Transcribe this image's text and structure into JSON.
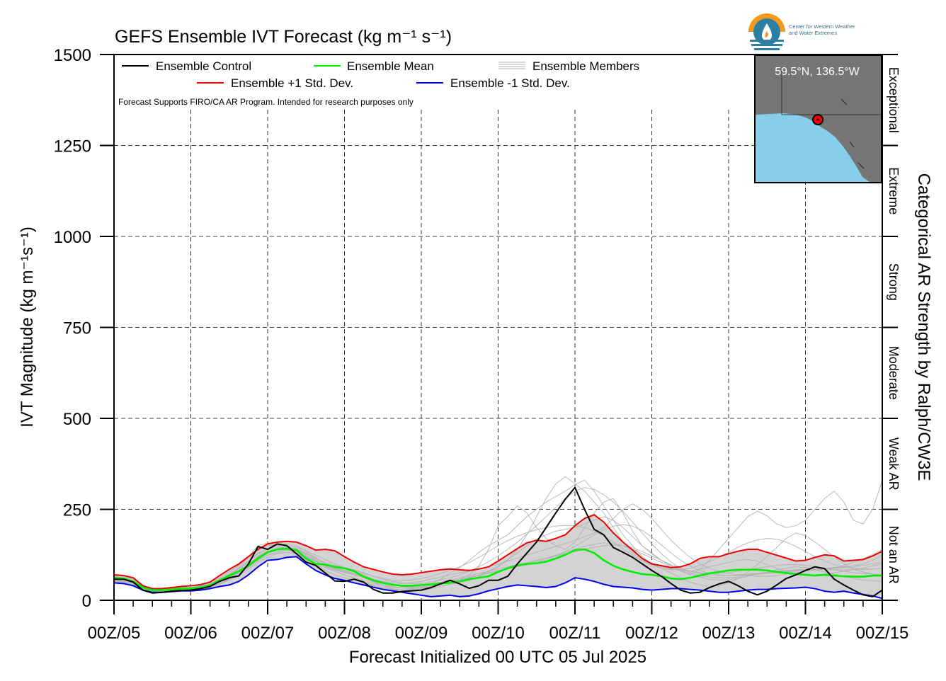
{
  "chart_data": {
    "type": "line",
    "title": "GEFS Ensemble IVT Forecast (kg m⁻¹ s⁻¹)",
    "xlabel": "Forecast Initialized 00 UTC 05 Jul 2025",
    "ylabel": "IVT Magnitude (kg m⁻¹s⁻¹)",
    "right_label": "Categorical AR Strength by Ralph/CW3E",
    "ylim": [
      0,
      1500
    ],
    "xlim": [
      0,
      10
    ],
    "grid": true,
    "legend_position": "top-left",
    "y_ticks": [
      "0",
      "250",
      "500",
      "750",
      "1000",
      "1250",
      "1500"
    ],
    "x_ticks": [
      "00Z/05",
      "00Z/06",
      "00Z/07",
      "00Z/08",
      "00Z/09",
      "00Z/10",
      "00Z/11",
      "00Z/12",
      "00Z/13",
      "00Z/14",
      "00Z/15"
    ],
    "note": "Forecast Supports FIRO/CA AR Program. Intended for research purposes only",
    "categories": [
      {
        "label": "Not an AR",
        "range": [
          0,
          250
        ]
      },
      {
        "label": "Weak AR",
        "range": [
          250,
          500
        ]
      },
      {
        "label": "Moderate",
        "range": [
          500,
          750
        ]
      },
      {
        "label": "Strong",
        "range": [
          750,
          1000
        ]
      },
      {
        "label": "Extreme",
        "range": [
          1000,
          1250
        ]
      },
      {
        "label": "Exceptional",
        "range": [
          1250,
          1500
        ]
      }
    ],
    "legend": {
      "control": "Ensemble Control",
      "mean": "Ensemble Mean",
      "members": "Ensemble Members",
      "plus_std": "Ensemble +1 Std. Dev.",
      "minus_std": "Ensemble -1 Std. Dev."
    },
    "colors": {
      "control": "#000000",
      "mean": "#00ee00",
      "plus_std": "#ee0000",
      "minus_std": "#0000ee",
      "members": "#b3b3b3",
      "spread": "#d3d3d3",
      "map_land": "#757575",
      "map_ocean": "#87ceeb",
      "logo_orange": "#f39a1f",
      "logo_blue": "#2d7fa4"
    },
    "x": [
      0,
      0.125,
      0.25,
      0.375,
      0.5,
      0.625,
      0.75,
      0.875,
      1,
      1.125,
      1.25,
      1.375,
      1.5,
      1.625,
      1.75,
      1.875,
      2,
      2.125,
      2.25,
      2.375,
      2.5,
      2.625,
      2.75,
      2.875,
      3,
      3.125,
      3.25,
      3.375,
      3.5,
      3.625,
      3.75,
      3.875,
      4,
      4.125,
      4.25,
      4.375,
      4.5,
      4.625,
      4.75,
      4.875,
      5,
      5.125,
      5.25,
      5.375,
      5.5,
      5.625,
      5.75,
      5.875,
      6,
      6.125,
      6.25,
      6.375,
      6.5,
      6.625,
      6.75,
      6.875,
      7,
      7.125,
      7.25,
      7.375,
      7.5,
      7.625,
      7.75,
      7.875,
      8,
      8.125,
      8.25,
      8.375,
      8.5,
      8.625,
      8.75,
      8.875,
      9,
      9.125,
      9.25,
      9.375,
      9.5,
      9.625,
      9.75,
      9.875,
      10
    ],
    "series": [
      {
        "name": "Ensemble Control",
        "key": "control",
        "values": [
          58,
          58,
          50,
          28,
          20,
          22,
          25,
          27,
          28,
          32,
          38,
          52,
          62,
          67,
          100,
          148,
          140,
          155,
          150,
          128,
          105,
          96,
          75,
          53,
          52,
          58,
          50,
          30,
          20,
          20,
          24,
          26,
          28,
          35,
          45,
          55,
          45,
          33,
          40,
          55,
          55,
          66,
          100,
          130,
          160,
          200,
          240,
          278,
          310,
          250,
          195,
          180,
          145,
          132,
          118,
          100,
          82,
          66,
          46,
          28,
          20,
          22,
          35,
          45,
          52,
          40,
          25,
          15,
          25,
          42,
          60,
          70,
          82,
          92,
          87,
          58,
          42,
          28,
          15,
          10,
          28
        ],
        "draw": true
      },
      {
        "name": "Ensemble Mean",
        "key": "mean",
        "values": [
          62,
          60,
          52,
          35,
          28,
          28,
          30,
          32,
          33,
          36,
          42,
          55,
          68,
          80,
          95,
          115,
          132,
          140,
          142,
          138,
          115,
          100,
          98,
          92,
          88,
          80,
          65,
          55,
          48,
          43,
          40,
          40,
          42,
          44,
          46,
          48,
          52,
          58,
          62,
          66,
          78,
          88,
          96,
          100,
          102,
          106,
          115,
          125,
          138,
          140,
          130,
          110,
          95,
          85,
          78,
          72,
          70,
          66,
          60,
          58,
          62,
          68,
          74,
          78,
          82,
          84,
          84,
          84,
          82,
          78,
          75,
          72,
          70,
          68,
          70,
          68,
          66,
          65,
          65,
          68,
          68
        ],
        "draw": true
      },
      {
        "name": "Ensemble +1 Std. Dev.",
        "key": "plus_std",
        "values": [
          70,
          68,
          62,
          40,
          32,
          32,
          35,
          38,
          40,
          43,
          50,
          68,
          85,
          100,
          120,
          140,
          155,
          160,
          162,
          160,
          150,
          138,
          140,
          136,
          120,
          105,
          92,
          85,
          78,
          72,
          70,
          72,
          76,
          80,
          84,
          86,
          84,
          82,
          86,
          92,
          108,
          125,
          142,
          158,
          165,
          162,
          170,
          180,
          205,
          225,
          235,
          215,
          185,
          160,
          138,
          115,
          100,
          95,
          90,
          92,
          100,
          115,
          120,
          120,
          128,
          135,
          140,
          140,
          132,
          124,
          116,
          108,
          110,
          118,
          125,
          122,
          108,
          110,
          112,
          122,
          135
        ],
        "draw": true
      },
      {
        "name": "Ensemble -1 Std. Dev.",
        "key": "minus_std",
        "values": [
          48,
          46,
          40,
          28,
          22,
          22,
          24,
          26,
          26,
          28,
          32,
          38,
          42,
          52,
          70,
          92,
          110,
          112,
          118,
          120,
          100,
          82,
          70,
          60,
          55,
          48,
          42,
          36,
          30,
          26,
          22,
          18,
          14,
          10,
          12,
          14,
          10,
          12,
          18,
          26,
          32,
          38,
          42,
          40,
          38,
          35,
          38,
          48,
          62,
          58,
          52,
          44,
          38,
          36,
          34,
          30,
          28,
          30,
          32,
          32,
          30,
          28,
          25,
          22,
          22,
          25,
          28,
          30,
          30,
          32,
          33,
          34,
          36,
          32,
          25,
          22,
          25,
          20,
          16,
          12,
          5
        ],
        "draw": true
      }
    ],
    "members": [
      [
        62,
        58,
        48,
        30,
        25,
        26,
        28,
        30,
        32,
        35,
        40,
        58,
        72,
        90,
        120,
        150,
        158,
        150,
        140,
        130,
        112,
        95,
        90,
        80,
        70,
        62,
        50,
        42,
        35,
        30,
        28,
        30,
        35,
        40,
        46,
        52,
        58,
        70,
        95,
        140,
        205,
        230,
        260,
        240,
        200,
        170,
        150,
        140,
        160,
        200,
        240,
        270,
        280,
        240,
        190,
        150,
        130,
        110,
        95,
        80,
        70,
        85,
        110,
        140,
        170,
        200,
        230,
        245,
        232,
        210,
        200,
        205,
        220,
        250,
        280,
        300,
        270,
        220,
        210,
        250,
        330
      ],
      [
        55,
        52,
        45,
        28,
        20,
        22,
        24,
        26,
        26,
        30,
        36,
        46,
        60,
        75,
        98,
        122,
        135,
        140,
        138,
        132,
        120,
        108,
        98,
        88,
        80,
        72,
        62,
        50,
        40,
        32,
        28,
        26,
        28,
        32,
        38,
        44,
        48,
        55,
        65,
        78,
        92,
        110,
        140,
        180,
        230,
        280,
        320,
        340,
        320,
        300,
        270,
        240,
        200,
        160,
        130,
        110,
        100,
        92,
        86,
        82,
        80,
        85,
        92,
        98,
        104,
        110,
        112,
        108,
        98,
        88,
        80,
        74,
        72,
        70,
        72,
        76,
        80,
        84,
        88,
        95,
        100
      ],
      [
        60,
        58,
        50,
        32,
        26,
        26,
        30,
        32,
        34,
        38,
        44,
        58,
        70,
        85,
        105,
        128,
        140,
        150,
        155,
        150,
        135,
        118,
        100,
        92,
        86,
        80,
        70,
        58,
        48,
        42,
        38,
        36,
        38,
        45,
        58,
        75,
        90,
        110,
        132,
        150,
        165,
        180,
        205,
        230,
        250,
        270,
        285,
        300,
        318,
        330,
        300,
        260,
        220,
        180,
        150,
        120,
        100,
        88,
        75,
        62,
        50,
        42,
        38,
        40,
        48,
        60,
        78,
        98,
        120,
        145,
        170,
        185,
        178,
        160,
        140,
        120,
        100,
        85,
        78,
        72,
        70
      ],
      [
        50,
        48,
        42,
        26,
        20,
        20,
        22,
        24,
        24,
        28,
        34,
        44,
        56,
        68,
        85,
        105,
        118,
        128,
        132,
        130,
        118,
        100,
        82,
        70,
        62,
        56,
        48,
        40,
        32,
        28,
        26,
        28,
        32,
        38,
        44,
        50,
        56,
        62,
        70,
        80,
        95,
        112,
        130,
        150,
        168,
        180,
        190,
        195,
        200,
        210,
        220,
        230,
        220,
        200,
        175,
        150,
        128,
        110,
        95,
        82,
        72,
        64,
        58,
        56,
        56,
        60,
        66,
        72,
        78,
        84,
        88,
        92,
        90,
        84,
        78,
        72,
        66,
        60,
        56,
        54,
        52
      ],
      [
        58,
        56,
        50,
        30,
        22,
        24,
        26,
        28,
        30,
        34,
        40,
        52,
        64,
        78,
        95,
        118,
        130,
        138,
        140,
        138,
        125,
        110,
        96,
        86,
        78,
        70,
        64,
        58,
        52,
        48,
        46,
        48,
        52,
        58,
        64,
        70,
        76,
        80,
        86,
        92,
        100,
        108,
        116,
        124,
        132,
        140,
        148,
        156,
        165,
        175,
        185,
        200,
        225,
        250,
        265,
        250,
        225,
        195,
        165,
        140,
        118,
        100,
        88,
        80,
        74,
        70,
        68,
        66,
        66,
        68,
        72,
        76,
        80,
        84,
        86,
        88,
        90,
        92,
        96,
        100,
        104
      ],
      [
        65,
        62,
        54,
        36,
        28,
        28,
        30,
        32,
        34,
        38,
        44,
        58,
        72,
        88,
        108,
        130,
        140,
        145,
        146,
        142,
        130,
        116,
        104,
        96,
        90,
        84,
        76,
        66,
        58,
        52,
        48,
        46,
        46,
        50,
        56,
        62,
        70,
        80,
        92,
        106,
        122,
        140,
        160,
        182,
        205,
        230,
        255,
        280,
        300,
        310,
        305,
        290,
        270,
        245,
        215,
        185,
        155,
        128,
        105,
        88,
        76,
        68,
        64,
        62,
        62,
        64,
        68,
        72,
        76,
        80,
        82,
        84,
        85,
        86,
        88,
        90,
        92,
        95,
        100,
        110,
        125
      ],
      [
        52,
        50,
        44,
        28,
        22,
        22,
        24,
        26,
        26,
        30,
        36,
        46,
        58,
        72,
        90,
        110,
        124,
        134,
        138,
        136,
        124,
        108,
        92,
        80,
        70,
        62,
        54,
        46,
        40,
        36,
        34,
        34,
        36,
        40,
        46,
        52,
        58,
        64,
        70,
        76,
        82,
        88,
        94,
        100,
        108,
        116,
        124,
        132,
        140,
        148,
        154,
        158,
        156,
        150,
        140,
        128,
        116,
        104,
        94,
        86,
        80,
        76,
        74,
        74,
        76,
        80,
        84,
        88,
        92,
        96,
        98,
        98,
        96,
        92,
        88,
        84,
        80,
        76,
        74,
        72,
        70
      ],
      [
        68,
        66,
        58,
        38,
        30,
        30,
        32,
        34,
        36,
        40,
        48,
        62,
        78,
        96,
        118,
        140,
        150,
        152,
        150,
        146,
        136,
        124,
        112,
        100,
        90,
        82,
        74,
        66,
        60,
        56,
        54,
        56,
        60,
        66,
        74,
        82,
        92,
        104,
        118,
        134,
        150,
        164,
        176,
        186,
        194,
        200,
        204,
        206,
        205,
        200,
        190,
        176,
        160,
        142,
        124,
        108,
        96,
        88,
        84,
        84,
        88,
        96,
        106,
        118,
        132,
        146,
        158,
        166,
        170,
        168,
        160,
        148,
        134,
        120,
        108,
        98,
        92,
        88,
        86,
        86,
        88
      ],
      [
        56,
        54,
        48,
        30,
        24,
        24,
        26,
        28,
        28,
        32,
        38,
        50,
        62,
        76,
        92,
        112,
        124,
        130,
        132,
        128,
        118,
        106,
        94,
        84,
        76,
        70,
        62,
        52,
        44,
        38,
        34,
        32,
        34,
        38,
        44,
        50,
        56,
        62,
        68,
        74,
        80,
        86,
        92,
        98,
        104,
        112,
        122,
        134,
        148,
        164,
        180,
        194,
        204,
        208,
        204,
        192,
        174,
        152,
        130,
        110,
        94,
        82,
        74,
        70,
        68,
        68,
        70,
        72,
        74,
        76,
        78,
        80,
        82,
        84,
        86,
        90,
        96,
        104,
        114,
        126,
        140
      ],
      [
        60,
        58,
        52,
        34,
        26,
        26,
        28,
        30,
        32,
        36,
        42,
        54,
        66,
        80,
        98,
        120,
        134,
        142,
        144,
        140,
        128,
        114,
        100,
        90,
        82,
        74,
        66,
        58,
        50,
        44,
        40,
        38,
        40,
        44,
        50,
        56,
        62,
        68,
        74,
        80,
        86,
        92,
        98,
        104,
        110,
        116,
        122,
        128,
        134,
        140,
        146,
        150,
        152,
        150,
        144,
        134,
        122,
        110,
        98,
        88,
        80,
        74,
        70,
        68,
        68,
        70,
        72,
        74,
        76,
        78,
        80,
        82,
        84,
        84,
        84,
        84,
        84,
        84,
        84,
        86,
        88
      ]
    ],
    "inset_map": {
      "label": "59.5°N, 136.5°W"
    },
    "logo": {
      "line1": "Center for Western Weather",
      "line2": "and Water Extremes"
    }
  }
}
